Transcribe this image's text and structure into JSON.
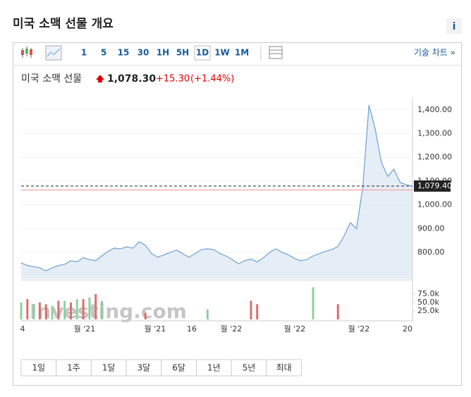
{
  "header": {
    "title": "미국 소맥 선물 개요",
    "info": "i"
  },
  "toolbar": {
    "intervals": [
      "1",
      "5",
      "15",
      "30",
      "1H",
      "5H",
      "1D",
      "1W",
      "1M"
    ],
    "active": "1D",
    "link": "기술 차트 »"
  },
  "quote": {
    "name": "미국 소맥 선물",
    "price": "1,078.30",
    "change": "+15.30",
    "change_pct": "(+1.44%)"
  },
  "chart_data": {
    "type": "line",
    "color": "#6fa0d0",
    "values": [
      756,
      745,
      740,
      735,
      722,
      735,
      745,
      750,
      765,
      760,
      778,
      770,
      765,
      785,
      805,
      818,
      815,
      824,
      818,
      845,
      830,
      795,
      780,
      790,
      800,
      810,
      795,
      780,
      795,
      812,
      815,
      812,
      795,
      785,
      770,
      752,
      765,
      772,
      760,
      778,
      800,
      815,
      800,
      790,
      775,
      765,
      770,
      785,
      795,
      805,
      812,
      825,
      870,
      925,
      900,
      1075,
      1421,
      1320,
      1179,
      1120,
      1150,
      1095,
      1085,
      1079
    ],
    "ylim": [
      690,
      1447
    ],
    "yticks": [
      {
        "value": 800,
        "label": "800.00"
      },
      {
        "value": 900,
        "label": "900.00"
      },
      {
        "value": 1000,
        "label": "1,000.00"
      },
      {
        "value": 1100,
        "label": "1,100.00"
      },
      {
        "value": 1200,
        "label": "1,200.00"
      },
      {
        "value": 1300,
        "label": "1,300.00"
      },
      {
        "value": 1400,
        "label": "1,400.00"
      }
    ],
    "last": {
      "value": 1079.4,
      "label": "1,079.40"
    },
    "reference": 1063,
    "x_labels": [
      "4",
      "월 '21",
      "월 '21",
      "16",
      "월 '22",
      "월 '22",
      "월 '22",
      "20"
    ],
    "watermark": "Investing.com",
    "volume": {
      "ylim": [
        0,
        110000
      ],
      "yticks": [
        {
          "value": 25000,
          "label": "25.0k"
        },
        {
          "value": 50000,
          "label": "50.0k"
        },
        {
          "value": 75000,
          "label": "75.0k"
        }
      ],
      "series": [
        {
          "name": "up",
          "color": "#8fcf9f",
          "values": [
            50000,
            null,
            45000,
            null,
            null,
            40000,
            null,
            55000,
            null,
            60000,
            null,
            65000,
            null,
            55000,
            null,
            null,
            null,
            null,
            null,
            null,
            null,
            null,
            null,
            null,
            null,
            null,
            null,
            null,
            null,
            null,
            30000,
            null,
            null,
            null,
            null,
            null,
            null,
            null,
            null,
            null,
            null,
            null,
            null,
            null,
            null,
            null,
            null,
            95000,
            null,
            null,
            null,
            null,
            null,
            null,
            null,
            null,
            null,
            null,
            null,
            null,
            null,
            null,
            null,
            null
          ]
        },
        {
          "name": "down",
          "color": "#d9706a",
          "values": [
            null,
            60000,
            null,
            50000,
            45000,
            null,
            55000,
            null,
            50000,
            null,
            60000,
            null,
            75000,
            null,
            null,
            null,
            null,
            null,
            null,
            null,
            20000,
            null,
            null,
            null,
            null,
            null,
            null,
            null,
            null,
            null,
            null,
            null,
            null,
            null,
            null,
            null,
            null,
            55000,
            45000,
            null,
            null,
            null,
            null,
            null,
            null,
            null,
            null,
            null,
            null,
            null,
            null,
            45000,
            null,
            null,
            null,
            null,
            null,
            null,
            null,
            null,
            null,
            null,
            null,
            null
          ]
        }
      ]
    }
  },
  "ranges": [
    "1일",
    "1주",
    "1달",
    "3달",
    "6달",
    "1년",
    "5년",
    "최대"
  ]
}
